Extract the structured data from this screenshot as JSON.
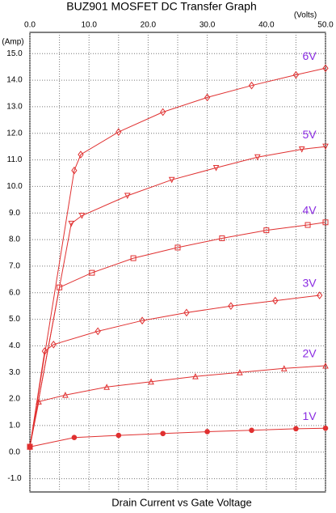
{
  "chart_data": {
    "type": "line",
    "title": "BUZ901 MOSFET DC Transfer Graph",
    "x_unit": "(Volts)",
    "y_unit": "(Amp)",
    "x_label": "Drain Current vs Gate Voltage",
    "xlim": [
      0,
      50
    ],
    "ylim": [
      -1.5,
      15.8
    ],
    "xticks": [
      {
        "value": 0,
        "label": "0.0"
      },
      {
        "value": 10,
        "label": "10.0"
      },
      {
        "value": 20,
        "label": "20.0"
      },
      {
        "value": 30,
        "label": "30.0"
      },
      {
        "value": 40,
        "label": "40.0"
      },
      {
        "value": 50,
        "label": "50.0"
      }
    ],
    "minor_xticks": [
      5,
      15,
      25,
      35,
      45
    ],
    "yticks": [
      {
        "value": -1,
        "label": "-1.0"
      },
      {
        "value": 0,
        "label": "0.0"
      },
      {
        "value": 1,
        "label": "1.0"
      },
      {
        "value": 2,
        "label": "2.0"
      },
      {
        "value": 3,
        "label": "3.0"
      },
      {
        "value": 4,
        "label": "4.0"
      },
      {
        "value": 5,
        "label": "5.0"
      },
      {
        "value": 6,
        "label": "6.0"
      },
      {
        "value": 7,
        "label": "7.0"
      },
      {
        "value": 8,
        "label": "8.0"
      },
      {
        "value": 9,
        "label": "9.0"
      },
      {
        "value": 10,
        "label": "10.0"
      },
      {
        "value": 11,
        "label": "11.0"
      },
      {
        "value": 12,
        "label": "12.0"
      },
      {
        "value": 13,
        "label": "13.0"
      },
      {
        "value": 14,
        "label": "14.0"
      },
      {
        "value": 15,
        "label": "15.0"
      }
    ],
    "grid": true,
    "line_color": "#e03030",
    "label_color": "#8a2be2",
    "series": [
      {
        "name": "6V",
        "marker": "diamond",
        "x": [
          0,
          7.5,
          8.6,
          15,
          22.5,
          30,
          37.5,
          45,
          50
        ],
        "values": [
          0.2,
          10.6,
          11.2,
          12.05,
          12.8,
          13.35,
          13.8,
          14.2,
          14.45
        ]
      },
      {
        "name": "5V",
        "marker": "triangle-down",
        "x": [
          0,
          7,
          8.8,
          16.5,
          24,
          31.5,
          38.5,
          46,
          50
        ],
        "values": [
          0.2,
          8.6,
          8.9,
          9.65,
          10.25,
          10.7,
          11.1,
          11.4,
          11.5
        ]
      },
      {
        "name": "4V",
        "marker": "square",
        "x": [
          0,
          5,
          10.5,
          17.5,
          25,
          32.5,
          40,
          47,
          50
        ],
        "values": [
          0.2,
          6.2,
          6.75,
          7.3,
          7.7,
          8.05,
          8.35,
          8.55,
          8.65
        ]
      },
      {
        "name": "3V",
        "marker": "diamond",
        "x": [
          0,
          2.5,
          4,
          11.5,
          19,
          26.5,
          34,
          41.5,
          49
        ],
        "values": [
          0.2,
          3.8,
          4.05,
          4.55,
          4.95,
          5.25,
          5.5,
          5.7,
          5.9
        ]
      },
      {
        "name": "2V",
        "marker": "triangle-up",
        "x": [
          0,
          1.5,
          6,
          13,
          20.5,
          28,
          35.5,
          43,
          50
        ],
        "values": [
          0.2,
          1.9,
          2.15,
          2.45,
          2.65,
          2.85,
          3.0,
          3.15,
          3.25
        ]
      },
      {
        "name": "1V",
        "marker": "dot",
        "x": [
          0,
          7.5,
          15,
          22.5,
          30,
          37.5,
          45,
          50
        ],
        "values": [
          0.2,
          0.55,
          0.63,
          0.7,
          0.77,
          0.82,
          0.88,
          0.9
        ]
      }
    ]
  }
}
